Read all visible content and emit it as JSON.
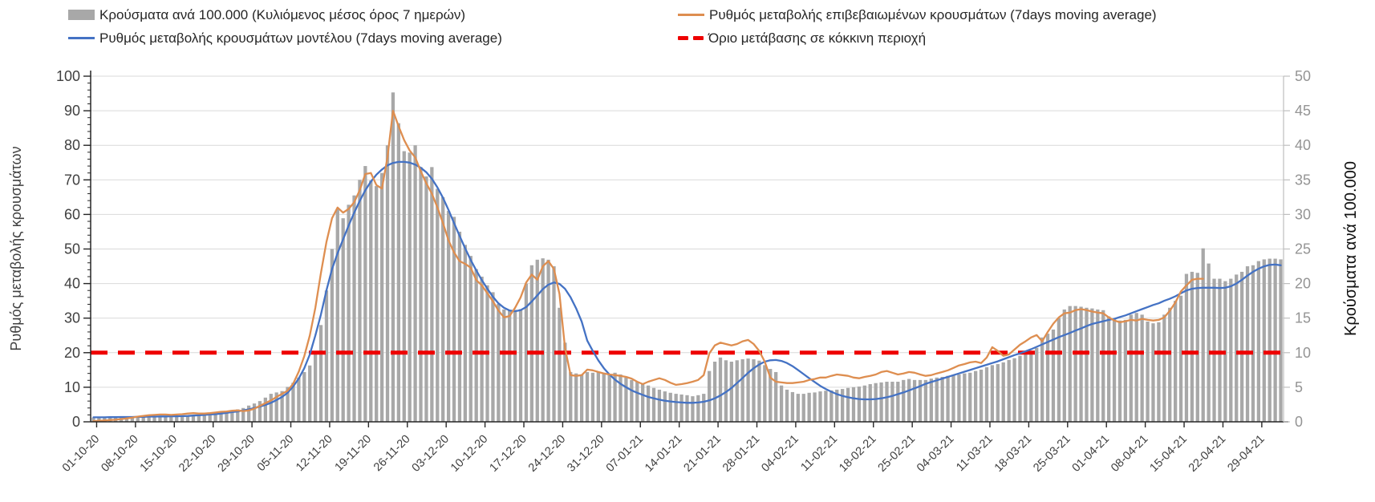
{
  "chart_data": {
    "type": "bar",
    "subtype": "combo-daily-bars-with-lines",
    "title": "",
    "colors": {
      "bars": "#a8a8a8",
      "model_line": "#4472c4",
      "confirmed_line": "#de8e50",
      "threshold": "#ee0000",
      "grid": "#d9d9d9",
      "axis_dark": "#262626",
      "axis_light": "#bfbfbf",
      "left_tick_text": "#404040",
      "right_tick_text": "#949494",
      "date_text": "#404040",
      "legend_text": "#262626"
    },
    "legend": [
      {
        "label": "Κρούσματα ανά 100.000 (Κυλιόμενος μέσος όρος 7 ημερών)",
        "marker": "bar"
      },
      {
        "label": "Ρυθμός μεταβολής κρουσμάτων μοντέλου (7days moving average)",
        "marker": "line-blue"
      },
      {
        "label": "Ρυθμός μεταβολής επιβεβαιωμένων κρουσμάτων (7days moving average)",
        "marker": "line-orange"
      },
      {
        "label": "Όριο μετάβασης σε κόκκινη περιοχή",
        "marker": "dash-red"
      }
    ],
    "axes": {
      "left": {
        "title": "Ρυθμός μεταβολής κρουσμάτων",
        "min": 0,
        "max": 100,
        "major_step": 10,
        "minor_step": 2,
        "ticks": [
          0,
          10,
          20,
          30,
          40,
          50,
          60,
          70,
          80,
          90,
          100
        ]
      },
      "right": {
        "title": "Κρούσματα ανά 100.000",
        "min": 0,
        "max": 50,
        "major_step": 5,
        "ticks": [
          0,
          5,
          10,
          15,
          20,
          25,
          30,
          35,
          40,
          45,
          50
        ]
      },
      "x": {
        "start": "01-10-20",
        "end": "03-05-21",
        "days": 215,
        "tick_every_days": 7,
        "tick_labels": [
          "01-10-20",
          "08-10-20",
          "15-10-20",
          "22-10-20",
          "29-10-20",
          "05-11-20",
          "12-11-20",
          "19-11-20",
          "26-11-20",
          "03-12-20",
          "10-12-20",
          "17-12-20",
          "24-12-20",
          "31-12-20",
          "07-01-21",
          "14-01-21",
          "21-01-21",
          "28-01-21",
          "04-02-21",
          "11-02-21",
          "18-02-21",
          "25-02-21",
          "04-03-21",
          "11-03-21",
          "18-03-21",
          "25-03-21",
          "01-04-21",
          "08-04-21",
          "15-04-21",
          "22-04-21",
          "29-04-21"
        ]
      }
    },
    "threshold": {
      "value_left_axis": 20,
      "style": "dashed"
    },
    "grid": {
      "horizontal_step_left_axis": 10,
      "vertical": false
    },
    "series": [
      {
        "name": "cases_per_100k_bars",
        "axis": "right",
        "values": [
          0.6,
          0.6,
          0.6,
          0.6,
          0.65,
          0.65,
          0.7,
          0.7,
          0.7,
          0.75,
          0.75,
          0.8,
          0.8,
          0.85,
          0.85,
          0.9,
          0.9,
          0.95,
          1.0,
          1.0,
          1.05,
          1.15,
          1.25,
          1.35,
          1.5,
          1.65,
          1.8,
          2.0,
          2.35,
          2.65,
          3.0,
          3.5,
          4.05,
          4.25,
          4.45,
          5.05,
          5.65,
          6.4,
          7.2,
          8.15,
          9.75,
          14.0,
          19.0,
          25.0,
          30.8,
          29.45,
          31.4,
          32.75,
          35.0,
          37.0,
          34.9,
          34.1,
          36.0,
          40.0,
          47.65,
          43.2,
          39.15,
          38.95,
          40.0,
          36.85,
          35.5,
          36.85,
          33.7,
          32.5,
          30.5,
          29.65,
          27.5,
          25.6,
          24.0,
          22.1,
          21.0,
          19.75,
          18.75,
          17.05,
          16.25,
          16.1,
          16.2,
          16.3,
          20.0,
          22.65,
          23.45,
          23.65,
          23.45,
          22.5,
          16.5,
          11.45,
          7.2,
          7.0,
          6.85,
          7.2,
          7.1,
          7.2,
          7.1,
          6.95,
          7.1,
          6.85,
          6.4,
          6.05,
          5.8,
          5.45,
          5.25,
          4.9,
          4.65,
          4.4,
          4.2,
          4.05,
          3.95,
          3.85,
          3.7,
          3.85,
          4.05,
          7.35,
          8.7,
          9.3,
          8.9,
          8.7,
          8.9,
          9.05,
          9.15,
          9.05,
          8.85,
          8.2,
          7.65,
          7.2,
          5.25,
          4.65,
          4.3,
          4.05,
          4.05,
          4.2,
          4.25,
          4.4,
          4.5,
          4.55,
          4.65,
          4.75,
          4.9,
          5.0,
          5.1,
          5.25,
          5.45,
          5.6,
          5.7,
          5.8,
          5.8,
          5.8,
          6.05,
          6.2,
          6.05,
          6.05,
          6.05,
          6.25,
          6.4,
          6.5,
          6.65,
          6.75,
          6.85,
          7.0,
          7.1,
          7.35,
          7.55,
          7.9,
          8.2,
          8.35,
          8.6,
          8.95,
          9.2,
          9.55,
          9.75,
          10.1,
          10.7,
          12.2,
          12.75,
          13.35,
          15.0,
          16.25,
          16.75,
          16.75,
          16.65,
          16.5,
          16.4,
          16.25,
          16.15,
          15.25,
          14.9,
          14.65,
          14.75,
          15.5,
          15.75,
          15.5,
          14.5,
          14.25,
          14.4,
          15.5,
          16.5,
          17.5,
          18.25,
          21.4,
          21.7,
          21.55,
          25.1,
          22.9,
          20.7,
          20.7,
          20.35,
          20.7,
          21.3,
          21.7,
          22.5,
          22.65,
          23.25,
          23.5,
          23.6,
          23.6,
          23.5
        ]
      },
      {
        "name": "confirmed_rate_line",
        "axis": "left",
        "values": [
          0.2,
          0.3,
          0.4,
          0.5,
          0.6,
          0.8,
          1.0,
          1.2,
          1.5,
          1.7,
          1.9,
          2.0,
          2.1,
          2.1,
          2.0,
          2.1,
          2.2,
          2.4,
          2.5,
          2.4,
          2.4,
          2.5,
          2.7,
          2.9,
          3.0,
          3.2,
          3.3,
          3.1,
          3.3,
          3.8,
          4.6,
          5.4,
          6.2,
          7.2,
          8.1,
          9.0,
          11.0,
          14.5,
          19.0,
          25.0,
          33.0,
          43.0,
          52.0,
          58.9,
          62.0,
          60.5,
          61.6,
          63.5,
          67.0,
          71.7,
          72.0,
          68.5,
          67.5,
          76.5,
          90.0,
          85.5,
          81.5,
          78.5,
          76.5,
          72.5,
          69.0,
          66.0,
          62.0,
          57.5,
          52.5,
          49.0,
          46.5,
          45.7,
          44.6,
          41.0,
          39.5,
          37.2,
          34.9,
          32.2,
          30.2,
          30.6,
          33.0,
          36.0,
          40.3,
          42.6,
          41.1,
          45.0,
          46.5,
          44.2,
          37.0,
          21.4,
          13.5,
          13.3,
          13.5,
          15.1,
          14.9,
          14.4,
          14.0,
          13.7,
          13.5,
          13.3,
          13.0,
          12.5,
          11.6,
          10.9,
          11.6,
          12.1,
          12.6,
          12.1,
          11.3,
          10.7,
          10.9,
          11.2,
          11.6,
          12.1,
          13.5,
          19.8,
          22.1,
          22.9,
          22.5,
          22.1,
          22.5,
          23.3,
          23.7,
          22.5,
          20.5,
          17.4,
          12.8,
          11.6,
          11.4,
          11.2,
          11.2,
          11.4,
          11.6,
          12.1,
          12.4,
          12.8,
          12.8,
          13.3,
          13.7,
          13.5,
          13.3,
          12.8,
          12.6,
          13.0,
          13.3,
          13.7,
          14.4,
          14.7,
          14.2,
          13.7,
          14.0,
          14.4,
          14.2,
          13.7,
          13.3,
          13.5,
          14.0,
          14.4,
          14.9,
          15.6,
          16.3,
          16.7,
          17.2,
          17.4,
          17.0,
          18.6,
          21.6,
          20.5,
          19.1,
          19.5,
          20.9,
          22.3,
          23.3,
          24.4,
          25.1,
          23.3,
          26.0,
          28.4,
          30.2,
          31.4,
          31.6,
          32.3,
          32.6,
          32.3,
          31.9,
          31.6,
          31.4,
          30.2,
          29.3,
          28.8,
          29.1,
          29.5,
          29.3,
          29.8,
          29.5,
          29.3,
          29.5,
          30.2,
          32.1,
          34.5,
          37.7,
          39.5,
          41.1,
          41.4,
          41.4
        ]
      },
      {
        "name": "model_rate_line",
        "axis": "left",
        "values": [
          1.3,
          1.3,
          1.3,
          1.35,
          1.35,
          1.4,
          1.4,
          1.4,
          1.45,
          1.45,
          1.5,
          1.5,
          1.55,
          1.55,
          1.6,
          1.6,
          1.65,
          1.7,
          1.8,
          1.9,
          2.0,
          2.1,
          2.2,
          2.4,
          2.6,
          2.8,
          3.0,
          3.3,
          3.6,
          4.0,
          4.4,
          4.9,
          5.5,
          6.3,
          7.2,
          8.4,
          10.2,
          12.5,
          15.5,
          19.5,
          25.0,
          31.0,
          38.0,
          44.2,
          48.8,
          52.8,
          56.8,
          60.5,
          63.9,
          67.0,
          69.5,
          71.5,
          73.0,
          74.2,
          74.9,
          75.2,
          75.2,
          75.0,
          74.4,
          73.5,
          72.2,
          70.3,
          67.8,
          64.8,
          61.3,
          57.5,
          53.8,
          50.2,
          46.8,
          43.8,
          41.0,
          38.5,
          36.2,
          34.3,
          33.0,
          32.2,
          32.0,
          32.3,
          33.2,
          34.8,
          36.6,
          38.4,
          39.7,
          40.3,
          39.9,
          38.5,
          36.0,
          32.8,
          29.0,
          23.5,
          20.5,
          17.8,
          15.5,
          13.7,
          12.2,
          11.0,
          10.0,
          9.1,
          8.4,
          7.8,
          7.2,
          6.8,
          6.4,
          6.1,
          5.9,
          5.7,
          5.6,
          5.5,
          5.5,
          5.6,
          5.8,
          6.2,
          6.8,
          7.6,
          8.6,
          9.8,
          11.2,
          12.7,
          14.2,
          15.5,
          16.6,
          17.4,
          17.8,
          17.9,
          17.6,
          17.0,
          16.1,
          15.0,
          13.8,
          12.6,
          11.5,
          10.4,
          9.5,
          8.7,
          8.0,
          7.5,
          7.1,
          6.8,
          6.6,
          6.5,
          6.5,
          6.6,
          6.8,
          7.1,
          7.5,
          8.0,
          8.5,
          9.1,
          9.7,
          10.3,
          11.0,
          11.5,
          12.0,
          12.5,
          13.0,
          13.5,
          14.0,
          14.5,
          15.0,
          15.5,
          16.0,
          16.5,
          17.0,
          17.5,
          18.1,
          18.7,
          19.3,
          19.8,
          20.4,
          21.0,
          21.7,
          22.4,
          23.1,
          23.8,
          24.5,
          25.1,
          25.7,
          26.4,
          27.0,
          27.7,
          28.3,
          28.7,
          29.1,
          29.5,
          29.8,
          30.3,
          30.8,
          31.4,
          32.0,
          32.6,
          33.2,
          33.8,
          34.3,
          35.0,
          35.6,
          36.3,
          37.2,
          38.0,
          38.5,
          38.7,
          38.8,
          38.8,
          38.8,
          38.7,
          38.8,
          39.2,
          40.0,
          41.1,
          42.3,
          43.4,
          44.3,
          45.0,
          45.4,
          45.5,
          45.3
        ]
      }
    ]
  }
}
